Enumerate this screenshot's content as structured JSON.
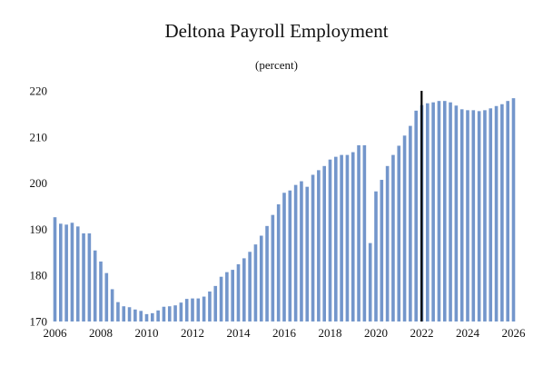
{
  "chart_data": {
    "type": "bar",
    "title": "Deltona Payroll Employment",
    "subtitle": "(percent)",
    "xlabel": "",
    "ylabel": "",
    "ylim": [
      170,
      220
    ],
    "yticks": [
      170,
      180,
      190,
      200,
      210,
      220
    ],
    "xlim": [
      2006,
      2026.25
    ],
    "xticks": [
      2006,
      2008,
      2010,
      2012,
      2014,
      2016,
      2018,
      2020,
      2022,
      2024,
      2026
    ],
    "grid": false,
    "bar_color": "#7396cb",
    "marker_line": {
      "x": 2022.0,
      "color": "#000000"
    },
    "series": [
      {
        "x": [
          2006.0,
          2006.25,
          2006.5,
          2006.75,
          2007.0,
          2007.25,
          2007.5,
          2007.75,
          2008.0,
          2008.25,
          2008.5,
          2008.75,
          2009.0,
          2009.25,
          2009.5,
          2009.75,
          2010.0,
          2010.25,
          2010.5,
          2010.75,
          2011.0,
          2011.25,
          2011.5,
          2011.75,
          2012.0,
          2012.25,
          2012.5,
          2012.75,
          2013.0,
          2013.25,
          2013.5,
          2013.75,
          2014.0,
          2014.25,
          2014.5,
          2014.75,
          2015.0,
          2015.25,
          2015.5,
          2015.75,
          2016.0,
          2016.25,
          2016.5,
          2016.75,
          2017.0,
          2017.25,
          2017.5,
          2017.75,
          2018.0,
          2018.25,
          2018.5,
          2018.75,
          2019.0,
          2019.25,
          2019.5,
          2019.75,
          2020.0,
          2020.25,
          2020.5,
          2020.75,
          2021.0,
          2021.25,
          2021.5,
          2021.75,
          2022.0,
          2022.25,
          2022.5,
          2022.75,
          2023.0,
          2023.25,
          2023.5,
          2023.75,
          2024.0,
          2024.25,
          2024.5,
          2024.75,
          2025.0,
          2025.25,
          2025.5,
          2025.75,
          2026.0
        ],
        "values": [
          192.6,
          191.2,
          191.0,
          191.4,
          190.6,
          189.1,
          189.1,
          185.4,
          183.0,
          180.5,
          177.0,
          174.2,
          173.3,
          173.1,
          172.6,
          172.3,
          171.6,
          171.8,
          172.4,
          173.2,
          173.3,
          173.5,
          174.1,
          174.9,
          175.0,
          175.0,
          175.4,
          176.5,
          177.7,
          179.7,
          180.7,
          181.2,
          182.4,
          183.7,
          185.1,
          186.7,
          188.6,
          190.7,
          193.1,
          195.4,
          197.9,
          198.4,
          199.6,
          200.4,
          199.2,
          201.8,
          202.8,
          203.7,
          205.1,
          205.7,
          206.1,
          206.1,
          206.7,
          208.2,
          208.2,
          187.0,
          198.2,
          200.7,
          203.7,
          206.1,
          208.1,
          210.3,
          212.4,
          215.7,
          216.9,
          217.3,
          217.5,
          217.8,
          217.8,
          217.5,
          216.8,
          216.0,
          215.8,
          215.8,
          215.6,
          215.8,
          216.2,
          216.7,
          217.1,
          217.8,
          218.4
        ]
      }
    ]
  }
}
